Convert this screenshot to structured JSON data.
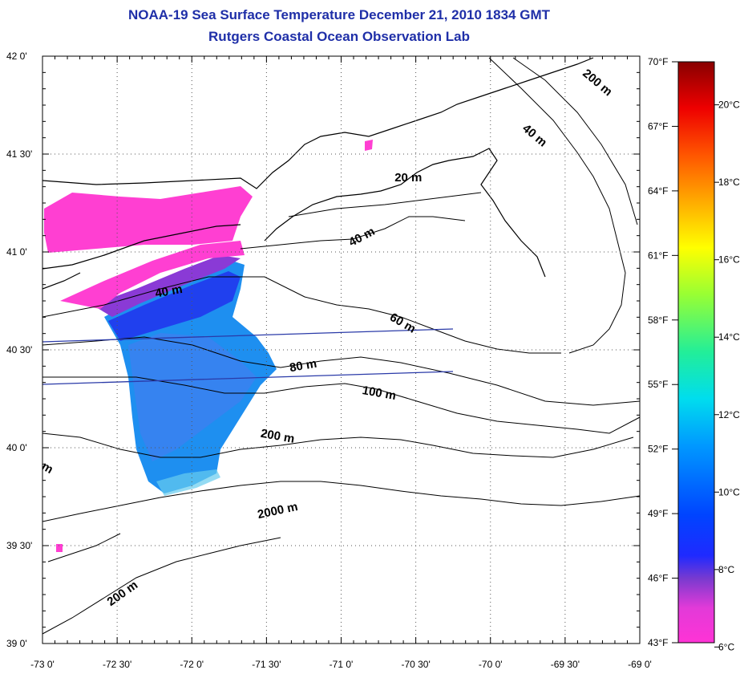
{
  "title": {
    "line1": "NOAA-19 Sea Surface Temperature December 21, 2010 1834 GMT",
    "line2": "Rutgers Coastal Ocean Observation Lab"
  },
  "colors": {
    "title": "#1f2fa8",
    "transect": "#2a3aa8"
  },
  "map": {
    "lat_ticks": [
      {
        "value": 42.0,
        "label": "42 0'"
      },
      {
        "value": 41.5,
        "label": "41 30'"
      },
      {
        "value": 41.0,
        "label": "41 0'"
      },
      {
        "value": 40.5,
        "label": "40 30'"
      },
      {
        "value": 40.0,
        "label": "40 0'"
      },
      {
        "value": 39.5,
        "label": "39 30'"
      },
      {
        "value": 39.0,
        "label": "39 0'"
      }
    ],
    "lon_ticks": [
      {
        "value": -73.0,
        "label": "-73 0'"
      },
      {
        "value": -72.5,
        "label": "-72 30'"
      },
      {
        "value": -72.0,
        "label": "-72 0'"
      },
      {
        "value": -71.5,
        "label": "-71 30'"
      },
      {
        "value": -71.0,
        "label": "-71 0'"
      },
      {
        "value": -70.5,
        "label": "-70 30'"
      },
      {
        "value": -70.0,
        "label": "-70 0'"
      },
      {
        "value": -69.5,
        "label": "-69 30'"
      },
      {
        "value": -69.0,
        "label": "-69 0'"
      }
    ],
    "contour_labels": [
      {
        "text": "200 m",
        "lon": -69.3,
        "lat": 41.85,
        "rot": 40
      },
      {
        "text": "40 m",
        "lon": -69.72,
        "lat": 41.58,
        "rot": 40
      },
      {
        "text": "20 m",
        "lon": -70.55,
        "lat": 41.36,
        "rot": 0
      },
      {
        "text": "40 m",
        "lon": -70.85,
        "lat": 41.06,
        "rot": -28
      },
      {
        "text": "40 m",
        "lon": -72.15,
        "lat": 40.78,
        "rot": -10
      },
      {
        "text": "60 m",
        "lon": -70.6,
        "lat": 40.62,
        "rot": 30
      },
      {
        "text": "80 m",
        "lon": -71.25,
        "lat": 40.4,
        "rot": -10
      },
      {
        "text": "100 m",
        "lon": -70.75,
        "lat": 40.26,
        "rot": 10
      },
      {
        "text": "200 m",
        "lon": -71.43,
        "lat": 40.04,
        "rot": 10
      },
      {
        "text": "2000 m",
        "lon": -71.42,
        "lat": 39.66,
        "rot": -12
      },
      {
        "text": "200 m",
        "lon": -72.45,
        "lat": 39.24,
        "rot": -35
      },
      {
        "text": "m",
        "lon": -72.98,
        "lat": 39.88,
        "rot": 30
      }
    ]
  },
  "colorbar": {
    "f_labels": [
      {
        "f": 70,
        "label": "70°F"
      },
      {
        "f": 67,
        "label": "67°F"
      },
      {
        "f": 64,
        "label": "64°F"
      },
      {
        "f": 61,
        "label": "61°F"
      },
      {
        "f": 58,
        "label": "58°F"
      },
      {
        "f": 55,
        "label": "55°F"
      },
      {
        "f": 52,
        "label": "52°F"
      },
      {
        "f": 49,
        "label": "49°F"
      },
      {
        "f": 46,
        "label": "46°F"
      },
      {
        "f": 43,
        "label": "43°F"
      }
    ],
    "c_labels": [
      {
        "c": 20,
        "label": "20°C"
      },
      {
        "c": 18,
        "label": "18°C"
      },
      {
        "c": 16,
        "label": "16°C"
      },
      {
        "c": 14,
        "label": "14°C"
      },
      {
        "c": 12,
        "label": "12°C"
      },
      {
        "c": 10,
        "label": "10°C"
      },
      {
        "c": 8,
        "label": "8°C"
      },
      {
        "c": 6,
        "label": "6°C"
      }
    ],
    "range_f": [
      43,
      70
    ]
  }
}
